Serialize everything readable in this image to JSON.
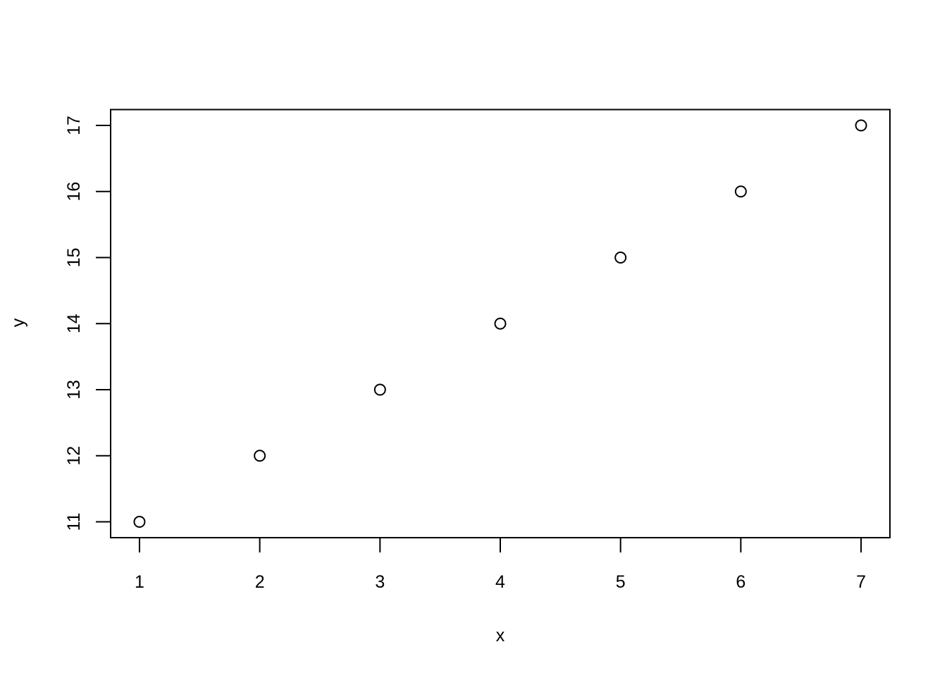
{
  "chart_data": {
    "type": "scatter",
    "x": [
      1,
      2,
      3,
      4,
      5,
      6,
      7
    ],
    "y": [
      11,
      12,
      13,
      14,
      15,
      16,
      17
    ],
    "title": "",
    "xlabel": "x",
    "ylabel": "y",
    "x_ticks": [
      1,
      2,
      3,
      4,
      5,
      6,
      7
    ],
    "y_ticks": [
      11,
      12,
      13,
      14,
      15,
      16,
      17
    ],
    "xlim": [
      0.76,
      7.24
    ],
    "ylim": [
      10.76,
      17.24
    ],
    "grid": false,
    "legend_position": "none",
    "marker": "open-circle",
    "colors": {
      "points": "#000000",
      "axis": "#000000",
      "background": "#ffffff"
    }
  }
}
